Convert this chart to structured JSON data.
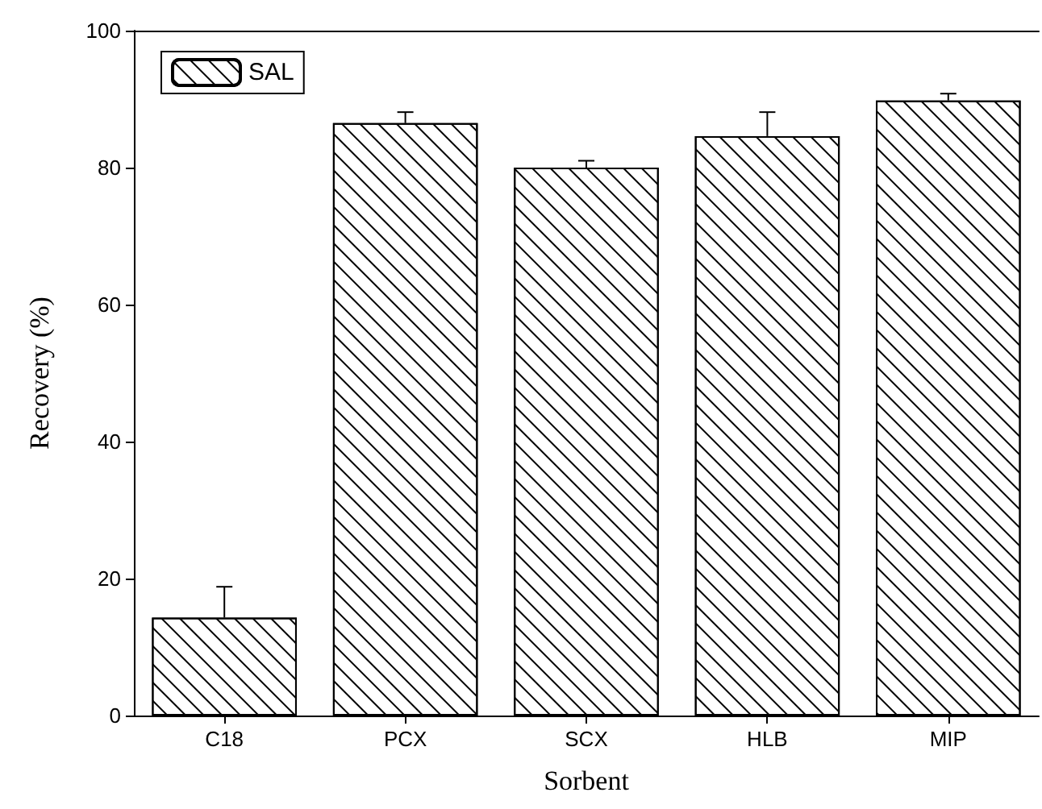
{
  "chart_data": {
    "type": "bar",
    "xlabel": "Sorbent",
    "ylabel": "Recovery (%)",
    "categories": [
      "C18",
      "PCX",
      "SCX",
      "HLB",
      "MIP"
    ],
    "series": [
      {
        "name": "SAL",
        "color": "#000000",
        "values": [
          14.3,
          86.5,
          80.0,
          84.6,
          89.8
        ],
        "errors": [
          [
            14.3,
            18.8
          ],
          [
            86.5,
            88.1
          ],
          [
            80.0,
            81.0
          ],
          [
            84.6,
            88.1
          ],
          [
            89.8,
            90.8
          ]
        ]
      }
    ],
    "ylim": [
      0,
      100
    ],
    "yticks": [
      0,
      20,
      40,
      60,
      80,
      100
    ],
    "grid": false,
    "legend": "top left"
  }
}
